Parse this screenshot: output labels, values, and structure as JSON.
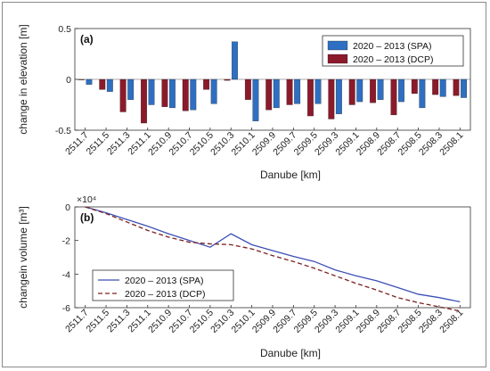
{
  "chart_data": [
    {
      "type": "bar",
      "panel_label": "(a)",
      "xlabel": "Danube [km]",
      "ylabel": "change in elevation [m]",
      "ylim": [
        -0.5,
        0.5
      ],
      "yticks": [
        -0.5,
        0,
        0.5
      ],
      "ytick_labels": [
        "-0.5",
        "0",
        "0.5"
      ],
      "grid": false,
      "legend_position": "top-right",
      "categories": [
        "2511.7",
        "2511.5",
        "2511.3",
        "2511.1",
        "2510.9",
        "2510.7",
        "2510.5",
        "2510.3",
        "2510.1",
        "2509.9",
        "2509.7",
        "2509.5",
        "2509.3",
        "2509.1",
        "2508.9",
        "2508.7",
        "2508.5",
        "2508.3",
        "2508.1"
      ],
      "series": [
        {
          "name": "2020 – 2013 (SPA)",
          "color": "#2e6fc2",
          "values": [
            -0.05,
            -0.12,
            -0.2,
            -0.25,
            -0.28,
            -0.3,
            -0.24,
            0.37,
            -0.41,
            -0.28,
            -0.24,
            -0.24,
            -0.34,
            -0.22,
            -0.2,
            -0.22,
            -0.28,
            -0.17,
            -0.18
          ]
        },
        {
          "name": "2020 – 2013 (DCP)",
          "color": "#8b1a2b",
          "values": [
            0,
            -0.1,
            -0.32,
            -0.43,
            -0.27,
            -0.31,
            -0.1,
            -0.01,
            -0.2,
            -0.3,
            -0.25,
            -0.36,
            -0.39,
            -0.25,
            -0.23,
            -0.35,
            -0.14,
            -0.15,
            -0.16
          ]
        }
      ]
    },
    {
      "type": "line",
      "panel_label": "(b)",
      "xlabel": "Danube [km]",
      "ylabel": "changein volume [m³]",
      "y_multiplier": "×10⁴",
      "ylim": [
        -60000,
        0
      ],
      "yticks": [
        -60000,
        -40000,
        -20000,
        0
      ],
      "ytick_labels": [
        "-6",
        "-4",
        "-2",
        "0"
      ],
      "grid": false,
      "legend_position": "bottom-left",
      "categories": [
        "2511.7",
        "2511.5",
        "2511.3",
        "2511.1",
        "2510.9",
        "2510.7",
        "2510.5",
        "2510.3",
        "2510.1",
        "2509.9",
        "2509.7",
        "2509.5",
        "2509.3",
        "2509.1",
        "2508.9",
        "2508.7",
        "2508.5",
        "2508.3",
        "2508.1"
      ],
      "series": [
        {
          "name": "2020 – 2013 (SPA)",
          "color": "#3d4fb5",
          "dash": "solid",
          "values": [
            0,
            -3500,
            -7500,
            -11500,
            -16000,
            -20000,
            -24000,
            -16000,
            -22500,
            -26000,
            -29500,
            -32500,
            -37500,
            -41000,
            -44000,
            -48000,
            -52000,
            -54000,
            -56500
          ]
        },
        {
          "name": "2020 – 2013 (DCP)",
          "color": "#7a2020",
          "dash": "dashed",
          "values": [
            0,
            -4000,
            -9000,
            -14000,
            -18000,
            -21000,
            -22000,
            -22500,
            -25000,
            -29000,
            -32500,
            -36500,
            -41000,
            -45500,
            -49500,
            -54000,
            -57000,
            -59500,
            -62000
          ]
        }
      ]
    }
  ]
}
